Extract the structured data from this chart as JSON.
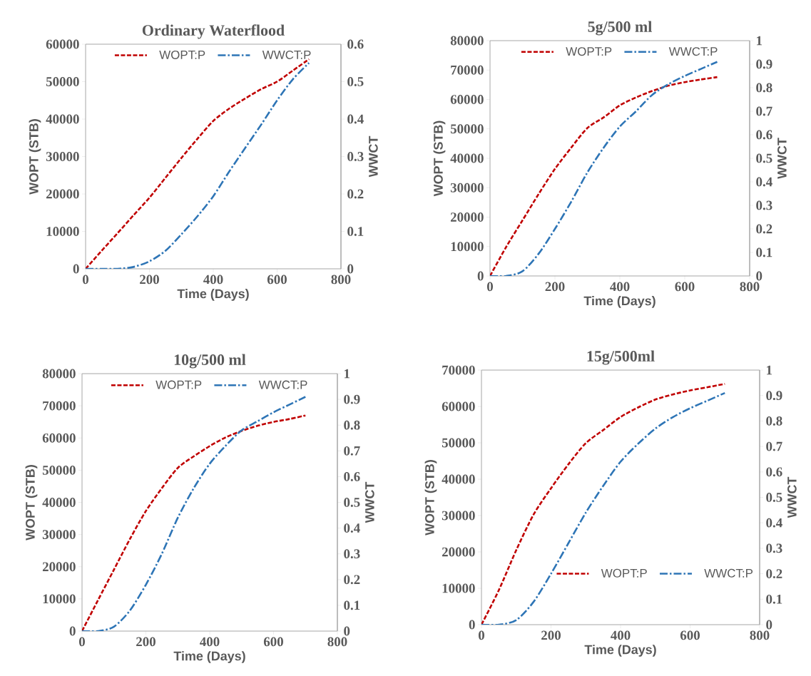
{
  "chart_data": [
    {
      "type": "line",
      "title": "Ordinary Waterflood",
      "xlabel": "Time (Days)",
      "ylabel": "WOPT (STB)",
      "y2label": "WWCT",
      "x": [
        0,
        50,
        100,
        150,
        200,
        250,
        300,
        350,
        400,
        450,
        500,
        550,
        600,
        650,
        700
      ],
      "series": [
        {
          "name": "WOPT:P",
          "color": "#c00000",
          "line_style": "dashed",
          "values": [
            0,
            4800,
            9500,
            14300,
            19000,
            24300,
            29600,
            34700,
            39500,
            42800,
            45500,
            48000,
            50000,
            53000,
            56000
          ]
        },
        {
          "name": "WWCT:P",
          "color": "#2e75b6",
          "line_style": "dashdot",
          "axis": "y2",
          "values": [
            0,
            0,
            0,
            0.005,
            0.02,
            0.048,
            0.092,
            0.14,
            0.194,
            0.26,
            0.323,
            0.385,
            0.45,
            0.507,
            0.55
          ]
        }
      ],
      "xlim": [
        0,
        800
      ],
      "xticks": [
        0,
        200,
        400,
        600,
        800
      ],
      "ylim": [
        0,
        60000
      ],
      "yticks": [
        0,
        10000,
        20000,
        30000,
        40000,
        50000,
        60000
      ],
      "y2lim": [
        0,
        0.6
      ],
      "y2ticks": [
        0,
        0.1,
        0.2,
        0.3,
        0.4,
        0.5,
        0.6
      ],
      "legend": "top"
    },
    {
      "type": "line",
      "title": "5g/500 ml",
      "xlabel": "Time (Days)",
      "ylabel": "WOPT (STB)",
      "y2label": "WWCT",
      "x": [
        0,
        50,
        100,
        150,
        200,
        250,
        300,
        350,
        400,
        450,
        500,
        550,
        600,
        650,
        700
      ],
      "series": [
        {
          "name": "WOPT:P",
          "color": "#c00000",
          "line_style": "dashed",
          "values": [
            0,
            9900,
            18900,
            27900,
            36400,
            43600,
            50300,
            53900,
            58000,
            60700,
            62900,
            64700,
            65900,
            66800,
            67600
          ]
        },
        {
          "name": "WWCT:P",
          "color": "#2e75b6",
          "line_style": "dashdot",
          "axis": "y2",
          "values": [
            0,
            0,
            0.02,
            0.095,
            0.2,
            0.315,
            0.44,
            0.545,
            0.635,
            0.7,
            0.77,
            0.815,
            0.85,
            0.88,
            0.91
          ]
        }
      ],
      "xlim": [
        0,
        800
      ],
      "xticks": [
        0,
        200,
        400,
        600,
        800
      ],
      "ylim": [
        0,
        80000
      ],
      "yticks": [
        0,
        10000,
        20000,
        30000,
        40000,
        50000,
        60000,
        70000,
        80000
      ],
      "y2lim": [
        0,
        1
      ],
      "y2ticks": [
        0,
        0.1,
        0.2,
        0.3,
        0.4,
        0.5,
        0.6,
        0.7,
        0.8,
        0.9,
        1
      ],
      "legend": "top"
    },
    {
      "type": "line",
      "title": "10g/500 ml",
      "xlabel": "Time (Days)",
      "ylabel": "WOPT (STB)",
      "y2label": "WWCT",
      "x": [
        0,
        50,
        100,
        150,
        200,
        250,
        300,
        350,
        400,
        450,
        500,
        550,
        600,
        650,
        700
      ],
      "series": [
        {
          "name": "WOPT:P",
          "color": "#c00000",
          "line_style": "dashed",
          "values": [
            0,
            9600,
            19100,
            28600,
            37300,
            44400,
            50700,
            54300,
            57500,
            60200,
            62200,
            63800,
            65000,
            65900,
            67000
          ]
        },
        {
          "name": "WWCT:P",
          "color": "#2e75b6",
          "line_style": "dashdot",
          "axis": "y2",
          "values": [
            0,
            0,
            0.017,
            0.08,
            0.18,
            0.3,
            0.44,
            0.555,
            0.65,
            0.72,
            0.78,
            0.815,
            0.85,
            0.88,
            0.91
          ]
        }
      ],
      "xlim": [
        0,
        800
      ],
      "xticks": [
        0,
        200,
        400,
        600,
        800
      ],
      "ylim": [
        0,
        80000
      ],
      "yticks": [
        0,
        10000,
        20000,
        30000,
        40000,
        50000,
        60000,
        70000,
        80000
      ],
      "y2lim": [
        0,
        1
      ],
      "y2ticks": [
        0,
        0.1,
        0.2,
        0.3,
        0.4,
        0.5,
        0.6,
        0.7,
        0.8,
        0.9,
        1
      ],
      "legend": "top"
    },
    {
      "type": "line",
      "title": "15g/500ml",
      "xlabel": "Time (Days)",
      "ylabel": "WOPT (STB)",
      "y2label": "WWCT",
      "x": [
        0,
        50,
        100,
        150,
        200,
        250,
        300,
        350,
        400,
        450,
        500,
        550,
        600,
        650,
        700
      ],
      "series": [
        {
          "name": "WOPT:P",
          "color": "#c00000",
          "line_style": "dashed",
          "values": [
            0,
            9500,
            20500,
            30300,
            37500,
            44100,
            49900,
            53500,
            57100,
            59700,
            61900,
            63300,
            64400,
            65300,
            66200
          ]
        },
        {
          "name": "WWCT:P",
          "color": "#2e75b6",
          "line_style": "dashdot",
          "axis": "y2",
          "values": [
            0,
            0,
            0.018,
            0.09,
            0.2,
            0.32,
            0.44,
            0.545,
            0.64,
            0.71,
            0.77,
            0.815,
            0.85,
            0.88,
            0.91
          ]
        }
      ],
      "xlim": [
        0,
        800
      ],
      "xticks": [
        0,
        200,
        400,
        600,
        800
      ],
      "ylim": [
        0,
        70000
      ],
      "yticks": [
        0,
        10000,
        20000,
        30000,
        40000,
        50000,
        60000,
        70000
      ],
      "y2lim": [
        0,
        1
      ],
      "y2ticks": [
        0,
        0.1,
        0.2,
        0.3,
        0.4,
        0.5,
        0.6,
        0.7,
        0.8,
        0.9,
        1
      ],
      "legend": "bottom right"
    }
  ]
}
